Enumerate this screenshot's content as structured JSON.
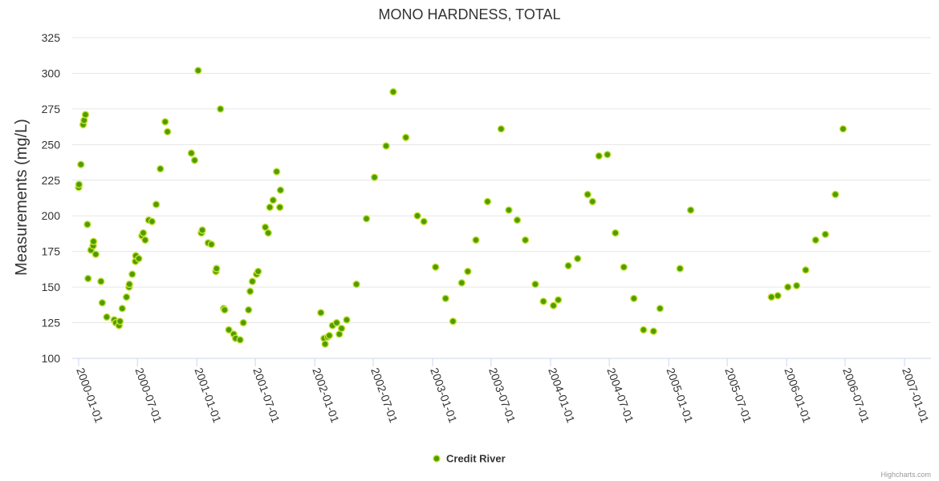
{
  "chart_data": {
    "type": "scatter",
    "title": "MONO HARDNESS, TOTAL",
    "xlabel": "",
    "ylabel": "Measurements (mg/L)",
    "ylim": [
      100,
      325
    ],
    "yticks": [
      100,
      125,
      150,
      175,
      200,
      225,
      250,
      275,
      300,
      325
    ],
    "xlim": [
      "2000-01-01",
      "2007-01-01"
    ],
    "xticks": [
      "2000-01-01",
      "2000-07-01",
      "2001-01-01",
      "2001-07-01",
      "2002-01-01",
      "2002-07-01",
      "2003-01-01",
      "2003-07-01",
      "2004-01-01",
      "2004-07-01",
      "2005-01-01",
      "2005-07-01",
      "2006-01-01",
      "2006-07-01",
      "2007-01-01"
    ],
    "grid": true,
    "legend_position": "bottom-center",
    "series": [
      {
        "name": "Credit River",
        "color": "#4e9e00",
        "points": [
          [
            "2000-01-01",
            220
          ],
          [
            "2000-01-02",
            222
          ],
          [
            "2000-01-08",
            236
          ],
          [
            "2000-01-15",
            264
          ],
          [
            "2000-01-18",
            267
          ],
          [
            "2000-01-22",
            271
          ],
          [
            "2000-01-28",
            194
          ],
          [
            "2000-01-30",
            156
          ],
          [
            "2000-02-08",
            176
          ],
          [
            "2000-02-15",
            179
          ],
          [
            "2000-02-16",
            182
          ],
          [
            "2000-02-23",
            173
          ],
          [
            "2000-03-10",
            154
          ],
          [
            "2000-03-14",
            139
          ],
          [
            "2000-03-28",
            129
          ],
          [
            "2000-04-20",
            127
          ],
          [
            "2000-04-25",
            125
          ],
          [
            "2000-05-05",
            123
          ],
          [
            "2000-05-08",
            126
          ],
          [
            "2000-05-15",
            135
          ],
          [
            "2000-05-28",
            143
          ],
          [
            "2000-06-05",
            150
          ],
          [
            "2000-06-06",
            152
          ],
          [
            "2000-06-15",
            159
          ],
          [
            "2000-06-25",
            168
          ],
          [
            "2000-06-26",
            172
          ],
          [
            "2000-07-05",
            170
          ],
          [
            "2000-07-15",
            186
          ],
          [
            "2000-07-19",
            188
          ],
          [
            "2000-07-25",
            183
          ],
          [
            "2000-08-05",
            197
          ],
          [
            "2000-08-15",
            196
          ],
          [
            "2000-08-28",
            208
          ],
          [
            "2000-09-10",
            233
          ],
          [
            "2000-09-25",
            266
          ],
          [
            "2000-10-02",
            259
          ],
          [
            "2000-12-15",
            244
          ],
          [
            "2000-12-25",
            239
          ],
          [
            "2001-01-05",
            302
          ],
          [
            "2001-01-15",
            188
          ],
          [
            "2001-01-18",
            190
          ],
          [
            "2001-02-05",
            181
          ],
          [
            "2001-02-15",
            180
          ],
          [
            "2001-03-01",
            161
          ],
          [
            "2001-03-03",
            163
          ],
          [
            "2001-03-15",
            275
          ],
          [
            "2001-03-25",
            135
          ],
          [
            "2001-03-28",
            134
          ],
          [
            "2001-04-10",
            120
          ],
          [
            "2001-04-25",
            117
          ],
          [
            "2001-05-01",
            114
          ],
          [
            "2001-05-15",
            113
          ],
          [
            "2001-05-25",
            125
          ],
          [
            "2001-06-10",
            134
          ],
          [
            "2001-06-15",
            147
          ],
          [
            "2001-06-22",
            154
          ],
          [
            "2001-07-05",
            159
          ],
          [
            "2001-07-10",
            161
          ],
          [
            "2001-08-01",
            192
          ],
          [
            "2001-08-10",
            188
          ],
          [
            "2001-08-15",
            206
          ],
          [
            "2001-08-25",
            211
          ],
          [
            "2001-09-05",
            231
          ],
          [
            "2001-09-15",
            206
          ],
          [
            "2001-09-17",
            218
          ],
          [
            "2002-01-20",
            132
          ],
          [
            "2002-01-30",
            114
          ],
          [
            "2002-02-02",
            110
          ],
          [
            "2002-02-10",
            115
          ],
          [
            "2002-02-15",
            116
          ],
          [
            "2002-02-25",
            123
          ],
          [
            "2002-03-10",
            125
          ],
          [
            "2002-03-18",
            117
          ],
          [
            "2002-03-25",
            121
          ],
          [
            "2002-04-10",
            127
          ],
          [
            "2002-05-10",
            152
          ],
          [
            "2002-06-10",
            198
          ],
          [
            "2002-07-05",
            227
          ],
          [
            "2002-08-10",
            249
          ],
          [
            "2002-09-01",
            287
          ],
          [
            "2002-10-10",
            255
          ],
          [
            "2002-11-15",
            200
          ],
          [
            "2002-12-05",
            196
          ],
          [
            "2003-01-10",
            164
          ],
          [
            "2003-02-10",
            142
          ],
          [
            "2003-03-05",
            126
          ],
          [
            "2003-04-01",
            153
          ],
          [
            "2003-04-20",
            161
          ],
          [
            "2003-05-15",
            183
          ],
          [
            "2003-06-20",
            210
          ],
          [
            "2003-08-01",
            261
          ],
          [
            "2003-08-25",
            204
          ],
          [
            "2003-09-20",
            197
          ],
          [
            "2003-10-15",
            183
          ],
          [
            "2003-11-15",
            152
          ],
          [
            "2003-12-10",
            140
          ],
          [
            "2004-01-10",
            137
          ],
          [
            "2004-01-25",
            141
          ],
          [
            "2004-02-25",
            165
          ],
          [
            "2004-03-25",
            170
          ],
          [
            "2004-04-25",
            215
          ],
          [
            "2004-05-10",
            210
          ],
          [
            "2004-05-30",
            242
          ],
          [
            "2004-06-25",
            243
          ],
          [
            "2004-07-20",
            188
          ],
          [
            "2004-08-15",
            164
          ],
          [
            "2004-09-15",
            142
          ],
          [
            "2004-10-15",
            120
          ],
          [
            "2004-11-15",
            119
          ],
          [
            "2004-12-05",
            135
          ],
          [
            "2005-02-05",
            163
          ],
          [
            "2005-03-10",
            204
          ],
          [
            "2005-11-15",
            143
          ],
          [
            "2005-12-05",
            144
          ],
          [
            "2006-01-05",
            150
          ],
          [
            "2006-02-01",
            151
          ],
          [
            "2006-03-01",
            162
          ],
          [
            "2006-04-01",
            183
          ],
          [
            "2006-05-01",
            187
          ],
          [
            "2006-06-01",
            215
          ],
          [
            "2006-06-25",
            261
          ]
        ]
      }
    ]
  },
  "credits": "Highcharts.com"
}
